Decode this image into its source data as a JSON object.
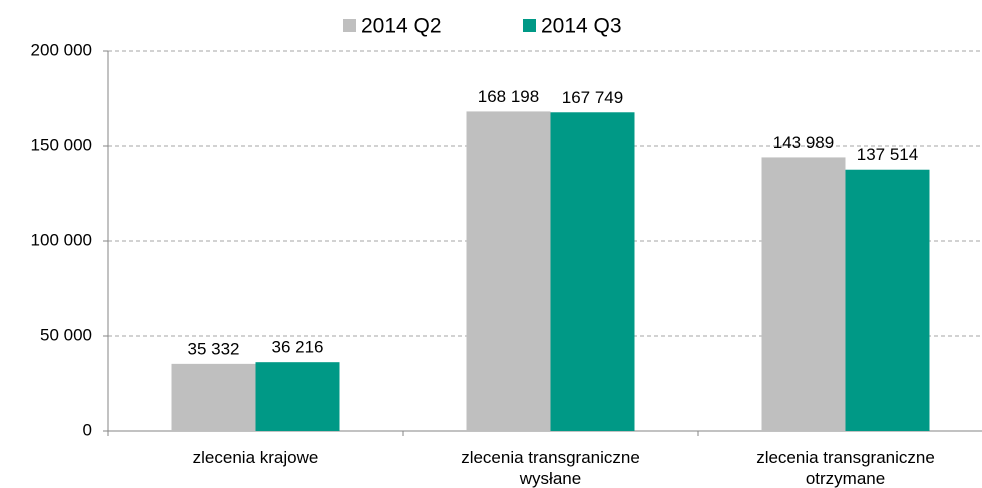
{
  "chart_data": {
    "type": "bar",
    "categories": [
      "zlecenia krajowe",
      "zlecenia transgraniczne wysłane",
      "zlecenia transgraniczne otrzymane"
    ],
    "series": [
      {
        "name": "2014 Q2",
        "color": "#bfbfbf",
        "values": [
          35332,
          168198,
          143989
        ],
        "value_labels": [
          "35 332",
          "168 198",
          "143 989"
        ]
      },
      {
        "name": "2014 Q3",
        "color": "#009986",
        "values": [
          36216,
          167749,
          137514
        ],
        "value_labels": [
          "36 216",
          "167 749",
          "137 514"
        ]
      }
    ],
    "ylim": [
      0,
      200000
    ],
    "yticks": [
      0,
      {
        "value": 50000,
        "label": "50 000"
      },
      {
        "value": 100000,
        "label": "100 000"
      },
      {
        "value": 150000,
        "label": "150 000"
      },
      {
        "value": 200000,
        "label": "200 000"
      }
    ],
    "grid": true,
    "legend": "top"
  }
}
